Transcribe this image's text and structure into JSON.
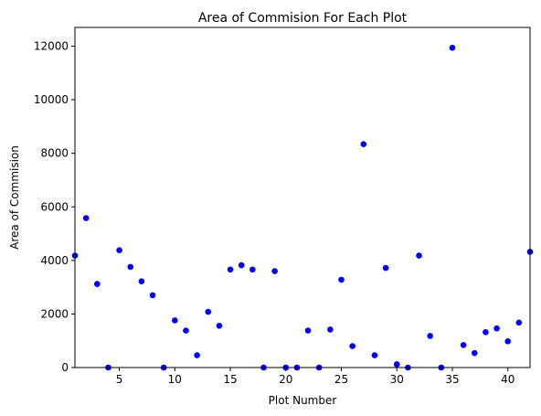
{
  "chart_data": {
    "type": "scatter",
    "title": "Area of Commision For Each Plot",
    "xlabel": "Plot Number",
    "ylabel": "Area of Commision",
    "xlim": [
      1,
      42
    ],
    "ylim": [
      0,
      12700
    ],
    "xticks": [
      5,
      10,
      15,
      20,
      25,
      30,
      35,
      40
    ],
    "yticks": [
      0,
      2000,
      4000,
      6000,
      8000,
      10000,
      12000
    ],
    "grid": false,
    "marker_color": "#0000ff",
    "series": [
      {
        "x": [
          1,
          2,
          3,
          4,
          5,
          6,
          7,
          8,
          9,
          10,
          11,
          12,
          13,
          14,
          15,
          16,
          17,
          18,
          19,
          20,
          21,
          22,
          23,
          24,
          25,
          26,
          27,
          28,
          29,
          30,
          31,
          32,
          33,
          34,
          35,
          36,
          37,
          38,
          39,
          40,
          41,
          42
        ],
        "y": [
          4180,
          5580,
          3120,
          0,
          4380,
          3760,
          3220,
          2700,
          0,
          1760,
          1380,
          460,
          2080,
          1560,
          3660,
          3820,
          3660,
          0,
          3600,
          0,
          0,
          1380,
          0,
          1420,
          3280,
          800,
          8340,
          460,
          3720,
          120,
          0,
          4180,
          1180,
          0,
          11940,
          840,
          540,
          1320,
          1460,
          980,
          1680,
          4320
        ]
      }
    ]
  }
}
